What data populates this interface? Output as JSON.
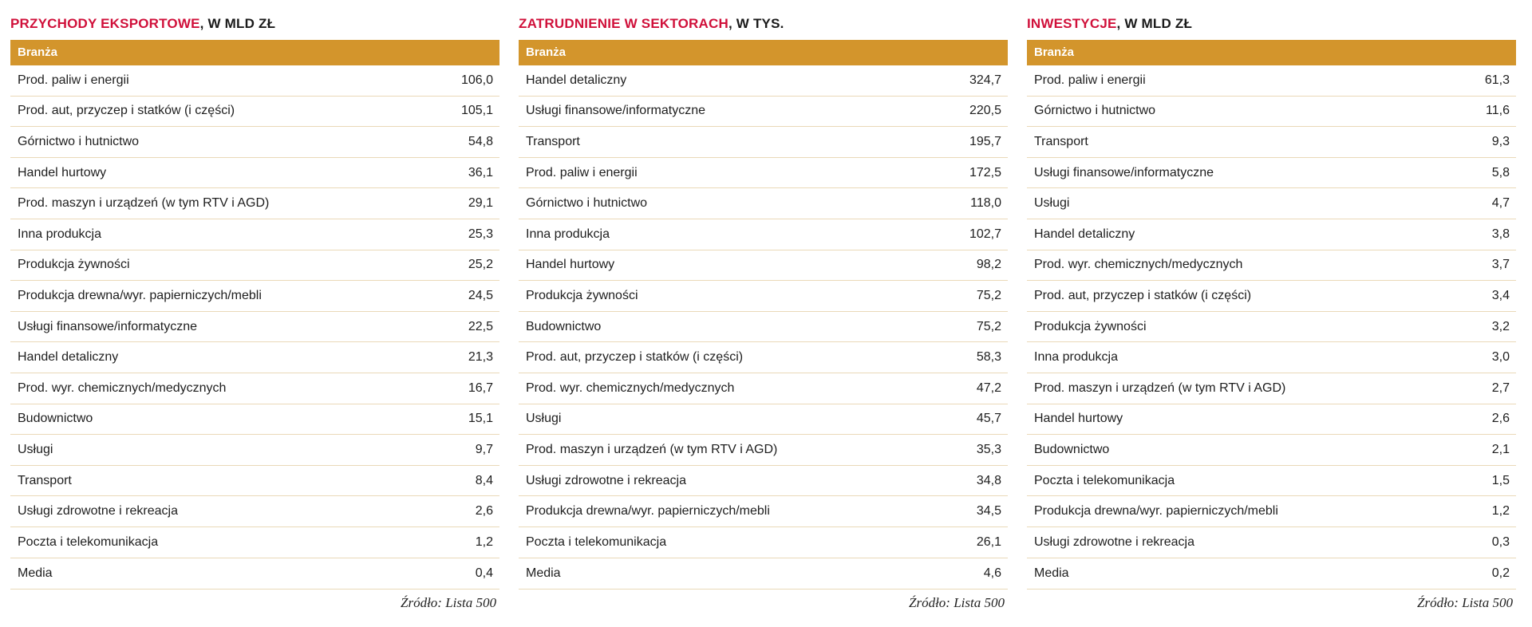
{
  "panels": [
    {
      "title_main": "PRZYCHODY EKSPORTOWE",
      "title_sub": ", W MLD ZŁ",
      "column_header": "Branża",
      "rows": [
        {
          "label": "Prod. paliw i energii",
          "value": "106,0"
        },
        {
          "label": "Prod. aut, przyczep i statków (i części)",
          "value": "105,1"
        },
        {
          "label": "Górnictwo i hutnictwo",
          "value": "54,8"
        },
        {
          "label": "Handel hurtowy",
          "value": "36,1"
        },
        {
          "label": "Prod. maszyn i urządzeń (w tym RTV i AGD)",
          "value": "29,1"
        },
        {
          "label": "Inna produkcja",
          "value": "25,3"
        },
        {
          "label": "Produkcja żywności",
          "value": "25,2"
        },
        {
          "label": "Produkcja drewna/wyr. papierniczych/mebli",
          "value": "24,5"
        },
        {
          "label": "Usługi finansowe/informatyczne",
          "value": "22,5"
        },
        {
          "label": "Handel detaliczny",
          "value": "21,3"
        },
        {
          "label": "Prod. wyr. chemicznych/medycznych",
          "value": "16,7"
        },
        {
          "label": "Budownictwo",
          "value": "15,1"
        },
        {
          "label": "Usługi",
          "value": "9,7"
        },
        {
          "label": "Transport",
          "value": "8,4"
        },
        {
          "label": "Usługi zdrowotne i rekreacja",
          "value": "2,6"
        },
        {
          "label": "Poczta i telekomunikacja",
          "value": "1,2"
        },
        {
          "label": "Media",
          "value": "0,4"
        }
      ],
      "source": "Źródło: Lista 500"
    },
    {
      "title_main": "ZATRUDNIENIE W SEKTORACH",
      "title_sub": ", W TYS.",
      "column_header": "Branża",
      "rows": [
        {
          "label": "Handel detaliczny",
          "value": "324,7"
        },
        {
          "label": "Usługi finansowe/informatyczne",
          "value": "220,5"
        },
        {
          "label": "Transport",
          "value": "195,7"
        },
        {
          "label": "Prod. paliw i energii",
          "value": "172,5"
        },
        {
          "label": "Górnictwo i hutnictwo",
          "value": "118,0"
        },
        {
          "label": "Inna produkcja",
          "value": "102,7"
        },
        {
          "label": "Handel hurtowy",
          "value": "98,2"
        },
        {
          "label": "Produkcja żywności",
          "value": "75,2"
        },
        {
          "label": "Budownictwo",
          "value": "75,2"
        },
        {
          "label": "Prod. aut, przyczep i statków (i części)",
          "value": "58,3"
        },
        {
          "label": "Prod. wyr. chemicznych/medycznych",
          "value": "47,2"
        },
        {
          "label": "Usługi",
          "value": "45,7"
        },
        {
          "label": "Prod. maszyn i urządzeń (w tym RTV i AGD)",
          "value": "35,3"
        },
        {
          "label": "Usługi zdrowotne i rekreacja",
          "value": "34,8"
        },
        {
          "label": "Produkcja drewna/wyr. papierniczych/mebli",
          "value": "34,5"
        },
        {
          "label": "Poczta i telekomunikacja",
          "value": "26,1"
        },
        {
          "label": "Media",
          "value": "4,6"
        }
      ],
      "source": "Źródło: Lista 500"
    },
    {
      "title_main": "INWESTYCJE",
      "title_sub": ", W MLD ZŁ",
      "column_header": "Branża",
      "rows": [
        {
          "label": "Prod. paliw i energii",
          "value": "61,3"
        },
        {
          "label": "Górnictwo i hutnictwo",
          "value": "11,6"
        },
        {
          "label": "Transport",
          "value": "9,3"
        },
        {
          "label": "Usługi finansowe/informatyczne",
          "value": "5,8"
        },
        {
          "label": "Usługi",
          "value": "4,7"
        },
        {
          "label": "Handel detaliczny",
          "value": "3,8"
        },
        {
          "label": "Prod. wyr. chemicznych/medycznych",
          "value": "3,7"
        },
        {
          "label": "Prod. aut, przyczep i statków (i części)",
          "value": "3,4"
        },
        {
          "label": "Produkcja żywności",
          "value": "3,2"
        },
        {
          "label": "Inna produkcja",
          "value": "3,0"
        },
        {
          "label": "Prod. maszyn i urządzeń (w tym RTV i AGD)",
          "value": "2,7"
        },
        {
          "label": "Handel hurtowy",
          "value": "2,6"
        },
        {
          "label": "Budownictwo",
          "value": "2,1"
        },
        {
          "label": "Poczta i telekomunikacja",
          "value": "1,5"
        },
        {
          "label": "Produkcja drewna/wyr. papierniczych/mebli",
          "value": "1,2"
        },
        {
          "label": "Usługi zdrowotne i rekreacja",
          "value": "0,3"
        },
        {
          "label": "Media",
          "value": "0,2"
        }
      ],
      "source": "Źródło: Lista 500"
    }
  ],
  "colors": {
    "title_accent": "#d0103a",
    "header_bg": "#d3952c",
    "row_rule": "#ead9b8"
  }
}
